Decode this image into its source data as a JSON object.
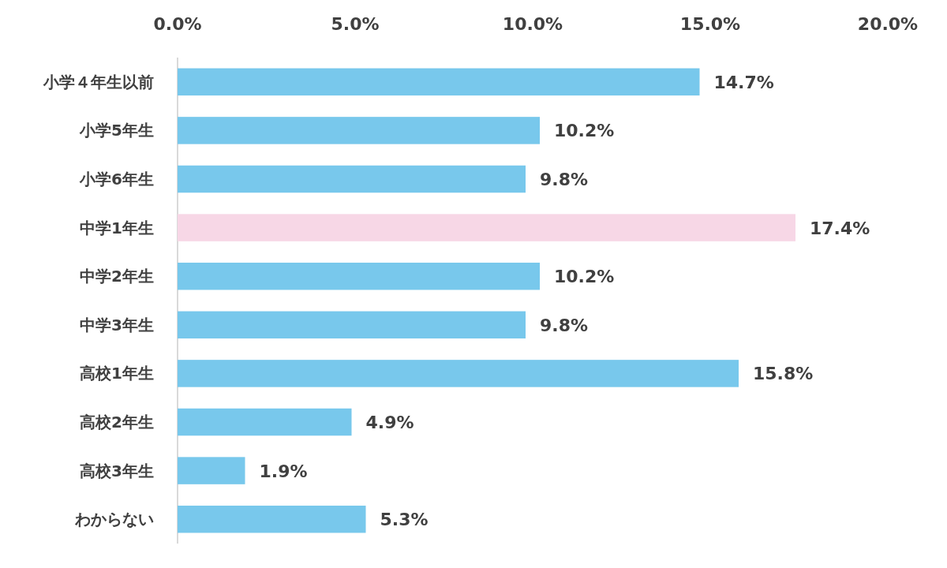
{
  "chart_data": {
    "type": "bar",
    "orientation": "horizontal",
    "categories": [
      "小学４年生以前",
      "小学5年生",
      "小学6年生",
      "中学1年生",
      "中学2年生",
      "中学3年生",
      "高校1年生",
      "高校2年生",
      "高校3年生",
      "わからない"
    ],
    "values": [
      14.7,
      10.2,
      9.8,
      17.4,
      10.2,
      9.8,
      15.8,
      4.9,
      1.9,
      5.3
    ],
    "colors": [
      "#78c8ec",
      "#78c8ec",
      "#78c8ec",
      "#f7d7e6",
      "#78c8ec",
      "#78c8ec",
      "#78c8ec",
      "#78c8ec",
      "#78c8ec",
      "#78c8ec"
    ],
    "value_labels": [
      "14.7%",
      "10.2%",
      "9.8%",
      "17.4%",
      "10.2%",
      "9.8%",
      "15.8%",
      "4.9%",
      "1.9%",
      "5.3%"
    ],
    "xlim": [
      0,
      20
    ],
    "xticks": [
      {
        "value": 0,
        "label": "0.0%"
      },
      {
        "value": 5,
        "label": "5.0%"
      },
      {
        "value": 10,
        "label": "10.0%"
      },
      {
        "value": 15,
        "label": "15.0%"
      },
      {
        "value": 20,
        "label": "20.0%"
      }
    ],
    "grid": false
  }
}
